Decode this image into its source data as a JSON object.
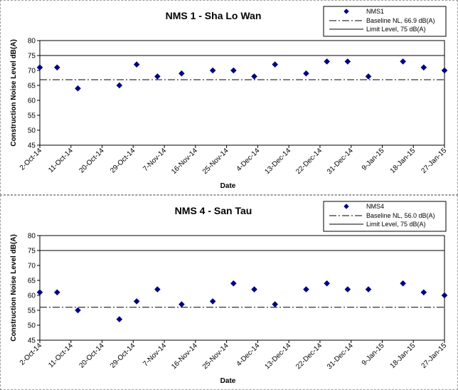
{
  "chart_data": [
    {
      "type": "scatter",
      "title": "NMS 1 - Sha Lo Wan",
      "xlabel": "Date",
      "ylabel": "Construction Noise Level  dB(A)",
      "ylim": [
        45,
        80
      ],
      "yticks": [
        45,
        50,
        55,
        60,
        65,
        70,
        75,
        80
      ],
      "xticks": [
        "2-Oct-14",
        "11-Oct-14",
        "20-Oct-14",
        "29-Oct-14",
        "7-Nov-14",
        "16-Nov-14",
        "25-Nov-14",
        "4-Dec-14",
        "13-Dec-14",
        "22-Dec-14",
        "31-Dec-14",
        "9-Jan-15",
        "18-Jan-15",
        "27-Jan-15"
      ],
      "xlim": [
        "2-Oct-14",
        "27-Jan-15"
      ],
      "grid": false,
      "legend_position": "top-right",
      "series": [
        {
          "name": "NMS1",
          "marker": "diamond",
          "color": "#000080",
          "x": [
            "2-Oct-14",
            "7-Oct-14",
            "13-Oct-14",
            "25-Oct-14",
            "30-Oct-14",
            "5-Nov-14",
            "12-Nov-14",
            "21-Nov-14",
            "27-Nov-14",
            "3-Dec-14",
            "9-Dec-14",
            "18-Dec-14",
            "24-Dec-14",
            "30-Dec-14",
            "5-Jan-15",
            "15-Jan-15",
            "21-Jan-15",
            "27-Jan-15"
          ],
          "y": [
            71,
            71,
            64,
            65,
            72,
            68,
            69,
            70,
            70,
            68,
            72,
            69,
            73,
            73,
            68,
            73,
            71,
            70
          ]
        }
      ],
      "reference_lines": [
        {
          "name": "Baseline NL, 66.9 dB(A)",
          "y": 66.9,
          "style": "dash-dot",
          "color": "#000000"
        },
        {
          "name": "Limit Level, 75 dB(A)",
          "y": 75,
          "style": "solid",
          "color": "#000000"
        }
      ]
    },
    {
      "type": "scatter",
      "title": "NMS 4 - San Tau",
      "xlabel": "Date",
      "ylabel": "Construction Noise Level  dB(A)",
      "ylim": [
        45,
        80
      ],
      "yticks": [
        45,
        50,
        55,
        60,
        65,
        70,
        75,
        80
      ],
      "xticks": [
        "2-Oct-14",
        "11-Oct-14",
        "20-Oct-14",
        "29-Oct-14",
        "7-Nov-14",
        "16-Nov-14",
        "25-Nov-14",
        "4-Dec-14",
        "13-Dec-14",
        "22-Dec-14",
        "31-Dec-14",
        "9-Jan-15",
        "18-Jan-15",
        "27-Jan-15"
      ],
      "xlim": [
        "2-Oct-14",
        "27-Jan-15"
      ],
      "grid": false,
      "legend_position": "top-right",
      "series": [
        {
          "name": "NMS4",
          "marker": "diamond",
          "color": "#000080",
          "x": [
            "2-Oct-14",
            "7-Oct-14",
            "13-Oct-14",
            "25-Oct-14",
            "30-Oct-14",
            "5-Nov-14",
            "12-Nov-14",
            "21-Nov-14",
            "27-Nov-14",
            "3-Dec-14",
            "9-Dec-14",
            "18-Dec-14",
            "24-Dec-14",
            "30-Dec-14",
            "5-Jan-15",
            "15-Jan-15",
            "21-Jan-15",
            "27-Jan-15"
          ],
          "y": [
            61,
            61,
            55,
            52,
            58,
            62,
            57,
            58,
            64,
            62,
            57,
            62,
            64,
            62,
            62,
            64,
            61,
            60
          ]
        }
      ],
      "reference_lines": [
        {
          "name": "Baseline NL, 56.0 dB(A)",
          "y": 56.0,
          "style": "dash-dot",
          "color": "#000000"
        },
        {
          "name": "Limit Level, 75 dB(A)",
          "y": 75,
          "style": "solid",
          "color": "#000000"
        }
      ]
    }
  ]
}
